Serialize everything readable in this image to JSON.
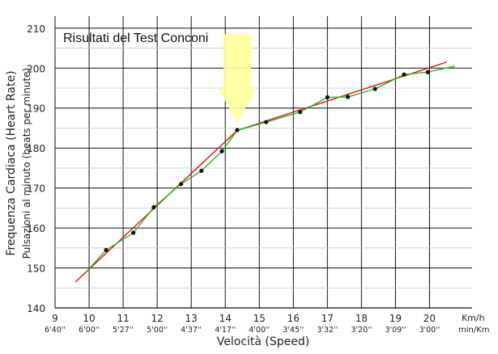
{
  "chart_data": {
    "type": "scatter",
    "title": "Risultati del Test Conconi",
    "xlabel": "Velocità (Speed)",
    "ylabel": "Frequenza Cardiaca (Heart Rate)",
    "ylabel2": "Pulsazioni al minuto (beats per minute)",
    "x_unit": "Km/h",
    "pace_unit": "min/Km",
    "xlim": [
      9,
      21.25
    ],
    "ylim": [
      140,
      213
    ],
    "x_ticks": [
      9,
      10,
      11,
      12,
      13,
      14,
      15,
      16,
      17,
      18,
      19,
      20
    ],
    "y_ticks": [
      140,
      150,
      160,
      170,
      180,
      190,
      200,
      210
    ],
    "pace_ticks": [
      "6'40''",
      "6'00''",
      "5'27''",
      "5'00''",
      "4'37''",
      "4'17''",
      "4'00''",
      "3'45''",
      "3'32''",
      "3'20''",
      "3'09''",
      "3'00''"
    ],
    "grid": true,
    "points": [
      {
        "x": 10.5,
        "y": 154.5
      },
      {
        "x": 11.3,
        "y": 158.8
      },
      {
        "x": 11.9,
        "y": 165.2
      },
      {
        "x": 12.7,
        "y": 171
      },
      {
        "x": 13.3,
        "y": 174.3
      },
      {
        "x": 13.9,
        "y": 179.2
      },
      {
        "x": 14.35,
        "y": 184.5
      },
      {
        "x": 15.2,
        "y": 186.5
      },
      {
        "x": 16.2,
        "y": 189
      },
      {
        "x": 17,
        "y": 192.7
      },
      {
        "x": 17.6,
        "y": 192.8
      },
      {
        "x": 18.4,
        "y": 194.8
      },
      {
        "x": 19.25,
        "y": 198.4
      },
      {
        "x": 19.95,
        "y": 199
      }
    ],
    "series": [
      {
        "kind": "fit",
        "color": "#dd1111",
        "values": [
          [
            9.6,
            146.5
          ],
          [
            14.35,
            184.4
          ],
          [
            20.5,
            201.5
          ]
        ]
      },
      {
        "kind": "trend",
        "color": "#22bb22",
        "values": [
          [
            9.95,
            149.3
          ],
          [
            10.5,
            154.5
          ],
          [
            11.3,
            158.8
          ],
          [
            11.9,
            165.2
          ],
          [
            12.7,
            171
          ],
          [
            13.3,
            174.3
          ],
          [
            13.9,
            179.2
          ],
          [
            14.35,
            184.4
          ],
          [
            15.2,
            186.5
          ],
          [
            16.2,
            189
          ],
          [
            17,
            192.7
          ],
          [
            17.6,
            192.8
          ],
          [
            18.4,
            194.8
          ],
          [
            19.25,
            198.4
          ],
          [
            19.95,
            199
          ],
          [
            20.75,
            200.5
          ]
        ]
      }
    ],
    "annotation": {
      "type": "arrow",
      "x": 14.35,
      "color": "#ffff99",
      "meaning": "deflection point"
    }
  }
}
